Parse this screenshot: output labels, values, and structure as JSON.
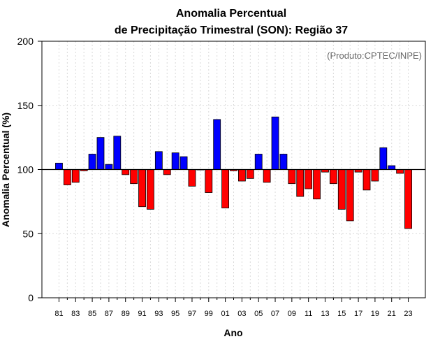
{
  "chart_data": {
    "type": "bar",
    "title_line1": "Anomalia Percentual",
    "title_line2": "de Precipitação Trimestral (SON): Região 37",
    "xlabel": "Ano",
    "ylabel": "Anomalia Percentual (%)",
    "annotation": "(Produto:CPTEC/INPE)",
    "baseline": 100,
    "ylim": [
      0,
      200
    ],
    "yticks": [
      0,
      50,
      100,
      150,
      200
    ],
    "colors": {
      "above": "#0000ff",
      "below": "#ff0000",
      "outline": "#000000",
      "grid": "#d9d9d9"
    },
    "categories": [
      "81",
      "82",
      "83",
      "84",
      "85",
      "86",
      "87",
      "88",
      "89",
      "90",
      "91",
      "92",
      "93",
      "94",
      "95",
      "96",
      "97",
      "98",
      "99",
      "00",
      "01",
      "02",
      "03",
      "04",
      "05",
      "06",
      "07",
      "08",
      "09",
      "10",
      "11",
      "12",
      "13",
      "14",
      "15",
      "16",
      "17",
      "18",
      "19",
      "20",
      "21",
      "22",
      "23"
    ],
    "xtick_labels": [
      "81",
      "83",
      "85",
      "87",
      "89",
      "91",
      "93",
      "95",
      "97",
      "99",
      "01",
      "03",
      "05",
      "07",
      "09",
      "11",
      "13",
      "15",
      "17",
      "19",
      "21",
      "23"
    ],
    "values": [
      105,
      88,
      90,
      99,
      112,
      125,
      104,
      126,
      96,
      89,
      71,
      69,
      114,
      96,
      113,
      110,
      87,
      100,
      82,
      139,
      70,
      99,
      91,
      93,
      112,
      90,
      141,
      112,
      89,
      79,
      85,
      77,
      98,
      89,
      69,
      60,
      98,
      84,
      91,
      117,
      103,
      97,
      54
    ]
  }
}
